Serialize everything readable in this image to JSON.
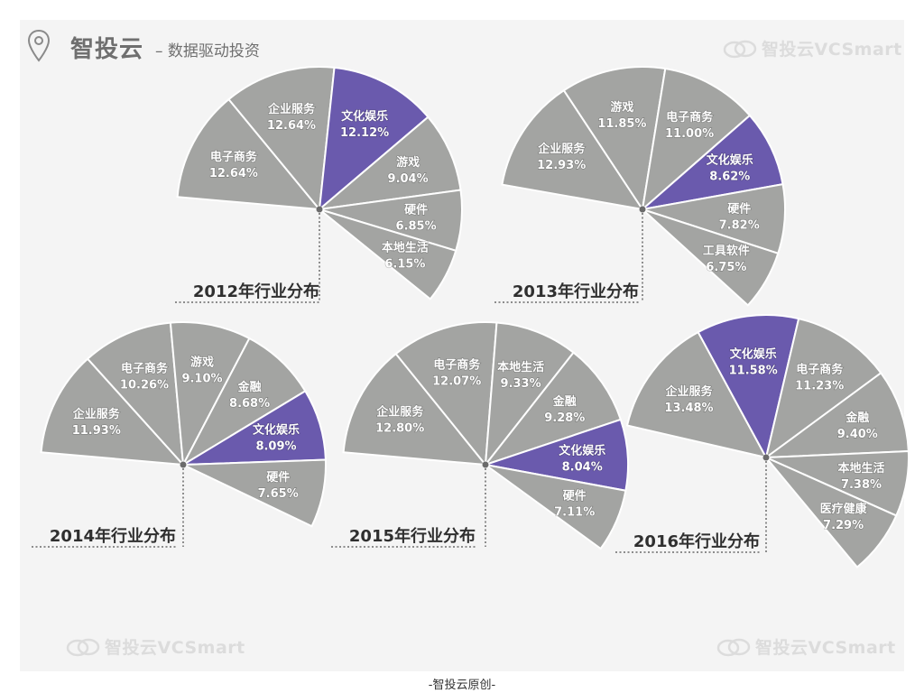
{
  "header": {
    "brand": "智投云",
    "tagline": "– 数据驱动投资",
    "watermark_text": "智投云VCSmart"
  },
  "footer": {
    "text": "-智投云原创-"
  },
  "colors": {
    "slice": "#a3a4a2",
    "highlight": "#6a5aad",
    "stroke": "#ffffff",
    "panel": "#f4f4f4"
  },
  "chart_data": [
    {
      "type": "pie",
      "title": "2012年行业分布",
      "highlight": "文化娱乐",
      "slices": [
        {
          "label": "电子商务",
          "value": 12.64,
          "display": "12.64%"
        },
        {
          "label": "企业服务",
          "value": 12.64,
          "display": "12.64%"
        },
        {
          "label": "文化娱乐",
          "value": 12.12,
          "display": "12.12%"
        },
        {
          "label": "游戏",
          "value": 9.04,
          "display": "9.04%"
        },
        {
          "label": "硬件",
          "value": 6.85,
          "display": "6.85%"
        },
        {
          "label": "本地生活",
          "value": 6.15,
          "display": "6.15%"
        }
      ]
    },
    {
      "type": "pie",
      "title": "2013年行业分布",
      "highlight": "文化娱乐",
      "slices": [
        {
          "label": "企业服务",
          "value": 12.93,
          "display": "12.93%"
        },
        {
          "label": "游戏",
          "value": 11.85,
          "display": "11.85%"
        },
        {
          "label": "电子商务",
          "value": 11.0,
          "display": "11.00%"
        },
        {
          "label": "文化娱乐",
          "value": 8.62,
          "display": "8.62%"
        },
        {
          "label": "硬件",
          "value": 7.82,
          "display": "7.82%"
        },
        {
          "label": "工具软件",
          "value": 6.75,
          "display": "6.75%"
        }
      ]
    },
    {
      "type": "pie",
      "title": "2014年行业分布",
      "highlight": "文化娱乐",
      "slices": [
        {
          "label": "企业服务",
          "value": 11.93,
          "display": "11.93%"
        },
        {
          "label": "电子商务",
          "value": 10.26,
          "display": "10.26%"
        },
        {
          "label": "游戏",
          "value": 9.1,
          "display": "9.10%"
        },
        {
          "label": "金融",
          "value": 8.68,
          "display": "8.68%"
        },
        {
          "label": "文化娱乐",
          "value": 8.09,
          "display": "8.09%"
        },
        {
          "label": "硬件",
          "value": 7.65,
          "display": "7.65%"
        }
      ]
    },
    {
      "type": "pie",
      "title": "2015年行业分布",
      "highlight": "文化娱乐",
      "slices": [
        {
          "label": "企业服务",
          "value": 12.8,
          "display": "12.80%"
        },
        {
          "label": "电子商务",
          "value": 12.07,
          "display": "12.07%"
        },
        {
          "label": "本地生活",
          "value": 9.33,
          "display": "9.33%"
        },
        {
          "label": "金融",
          "value": 9.28,
          "display": "9.28%"
        },
        {
          "label": "文化娱乐",
          "value": 8.04,
          "display": "8.04%"
        },
        {
          "label": "硬件",
          "value": 7.11,
          "display": "7.11%"
        }
      ]
    },
    {
      "type": "pie",
      "title": "2016年行业分布",
      "highlight": "文化娱乐",
      "slices": [
        {
          "label": "企业服务",
          "value": 13.48,
          "display": "13.48%"
        },
        {
          "label": "文化娱乐",
          "value": 11.58,
          "display": "11.58%"
        },
        {
          "label": "电子商务",
          "value": 11.23,
          "display": "11.23%"
        },
        {
          "label": "金融",
          "value": 9.4,
          "display": "9.40%"
        },
        {
          "label": "本地生活",
          "value": 7.38,
          "display": "7.38%"
        },
        {
          "label": "医疗健康",
          "value": 7.29,
          "display": "7.29%"
        }
      ]
    }
  ]
}
